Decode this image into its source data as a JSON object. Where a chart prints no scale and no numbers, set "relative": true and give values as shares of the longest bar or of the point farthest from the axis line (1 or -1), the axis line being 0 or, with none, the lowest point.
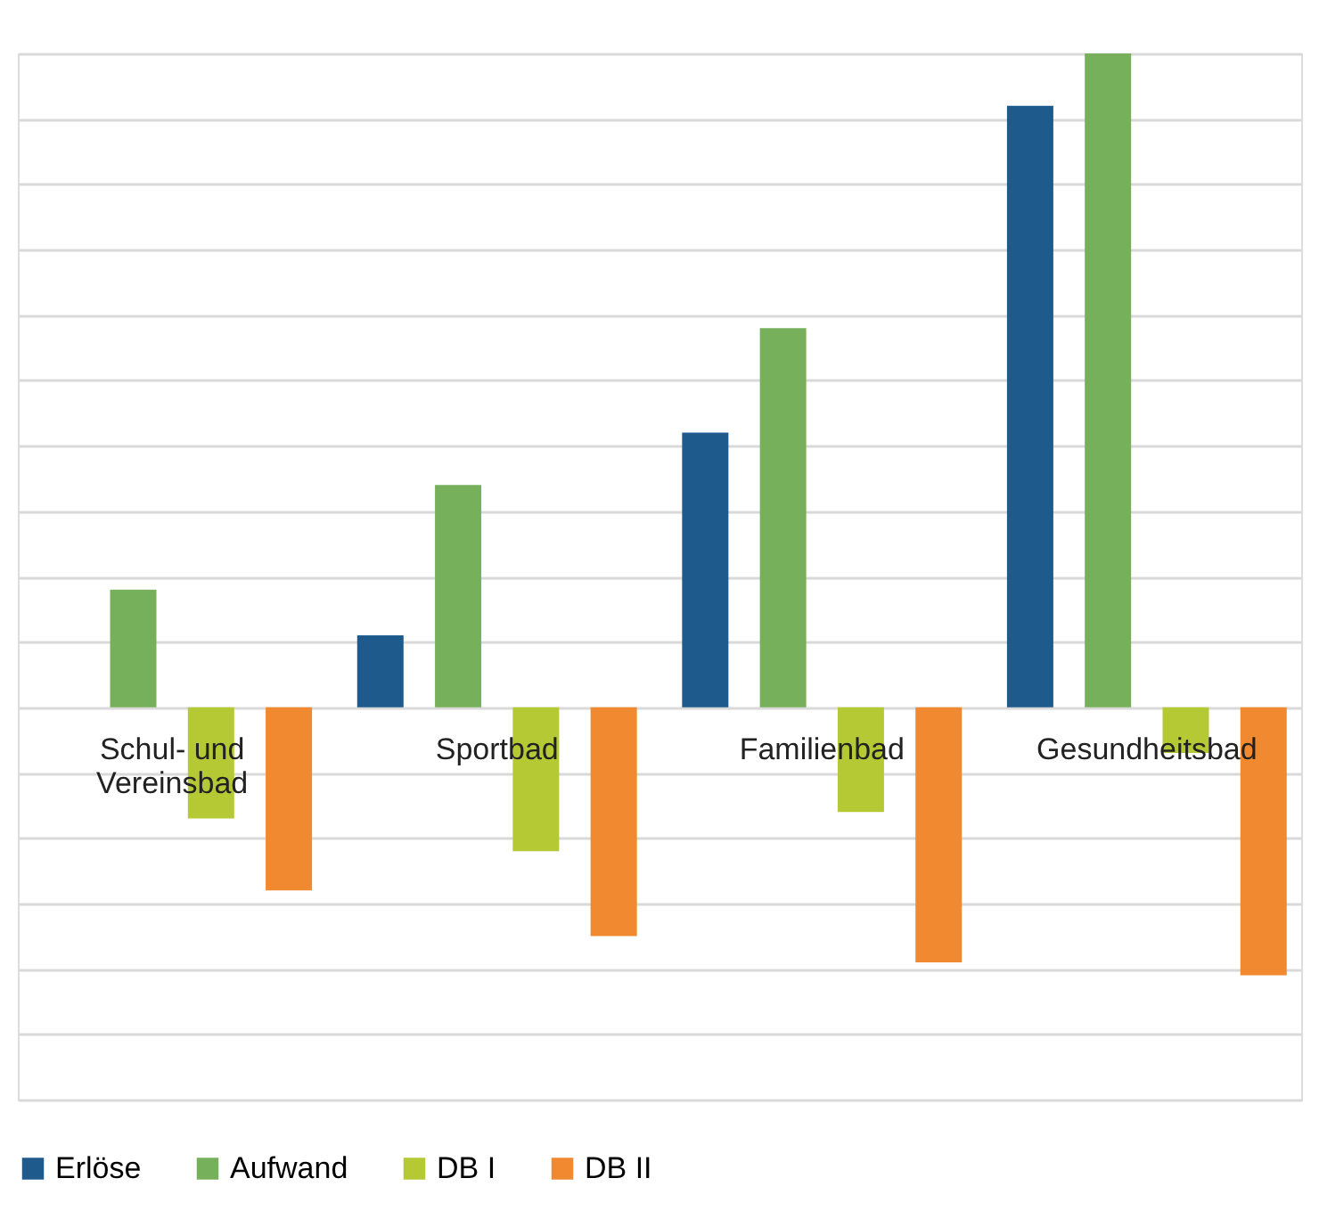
{
  "chart_data": {
    "type": "bar",
    "relative": true,
    "grid": "y",
    "legend": "bottom",
    "categories": [
      "Schul- und Vereinsbad",
      "Sportbad",
      "Familienbad",
      "Gesundheitsbad"
    ],
    "series": [
      {
        "name": "Erlöse",
        "color": "#1f5a8c",
        "values": [
          null,
          0.11,
          0.42,
          0.92
        ]
      },
      {
        "name": "Aufwand",
        "color": "#77b05a",
        "values": [
          0.18,
          0.34,
          0.58,
          1
        ]
      },
      {
        "name": "DB I",
        "color": "#b5c934",
        "values": [
          -0.17,
          -0.22,
          -0.16,
          -0.07
        ]
      },
      {
        "name": "DB II",
        "color": "#f0892f",
        "values": [
          -0.28,
          -0.35,
          -0.39,
          -0.41
        ]
      }
    ]
  }
}
